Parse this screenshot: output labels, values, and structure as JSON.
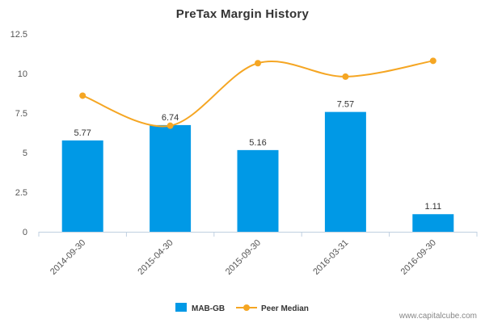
{
  "chart_data": {
    "type": "bar",
    "title": "PreTax Margin History",
    "categories": [
      "2014-09-30",
      "2015-04-30",
      "2015-09-30",
      "2016-03-31",
      "2016-09-30"
    ],
    "series": [
      {
        "name": "MAB-GB",
        "type": "bar",
        "color": "#0099e6",
        "values": [
          5.77,
          6.74,
          5.16,
          7.57,
          1.11
        ],
        "labels": [
          "5.77",
          "6.74",
          "5.16",
          "7.57",
          "1.11"
        ]
      },
      {
        "name": "Peer Median",
        "type": "line",
        "color": "#f5a623",
        "values": [
          8.6,
          6.7,
          10.65,
          9.8,
          10.8
        ]
      }
    ],
    "yticks": [
      "0",
      "2.5",
      "5",
      "7.5",
      "10",
      "12.5"
    ],
    "ylim": [
      0,
      12.5
    ],
    "grid": false,
    "legend": "bottom-center"
  },
  "watermark": "www.capitalcube.com"
}
